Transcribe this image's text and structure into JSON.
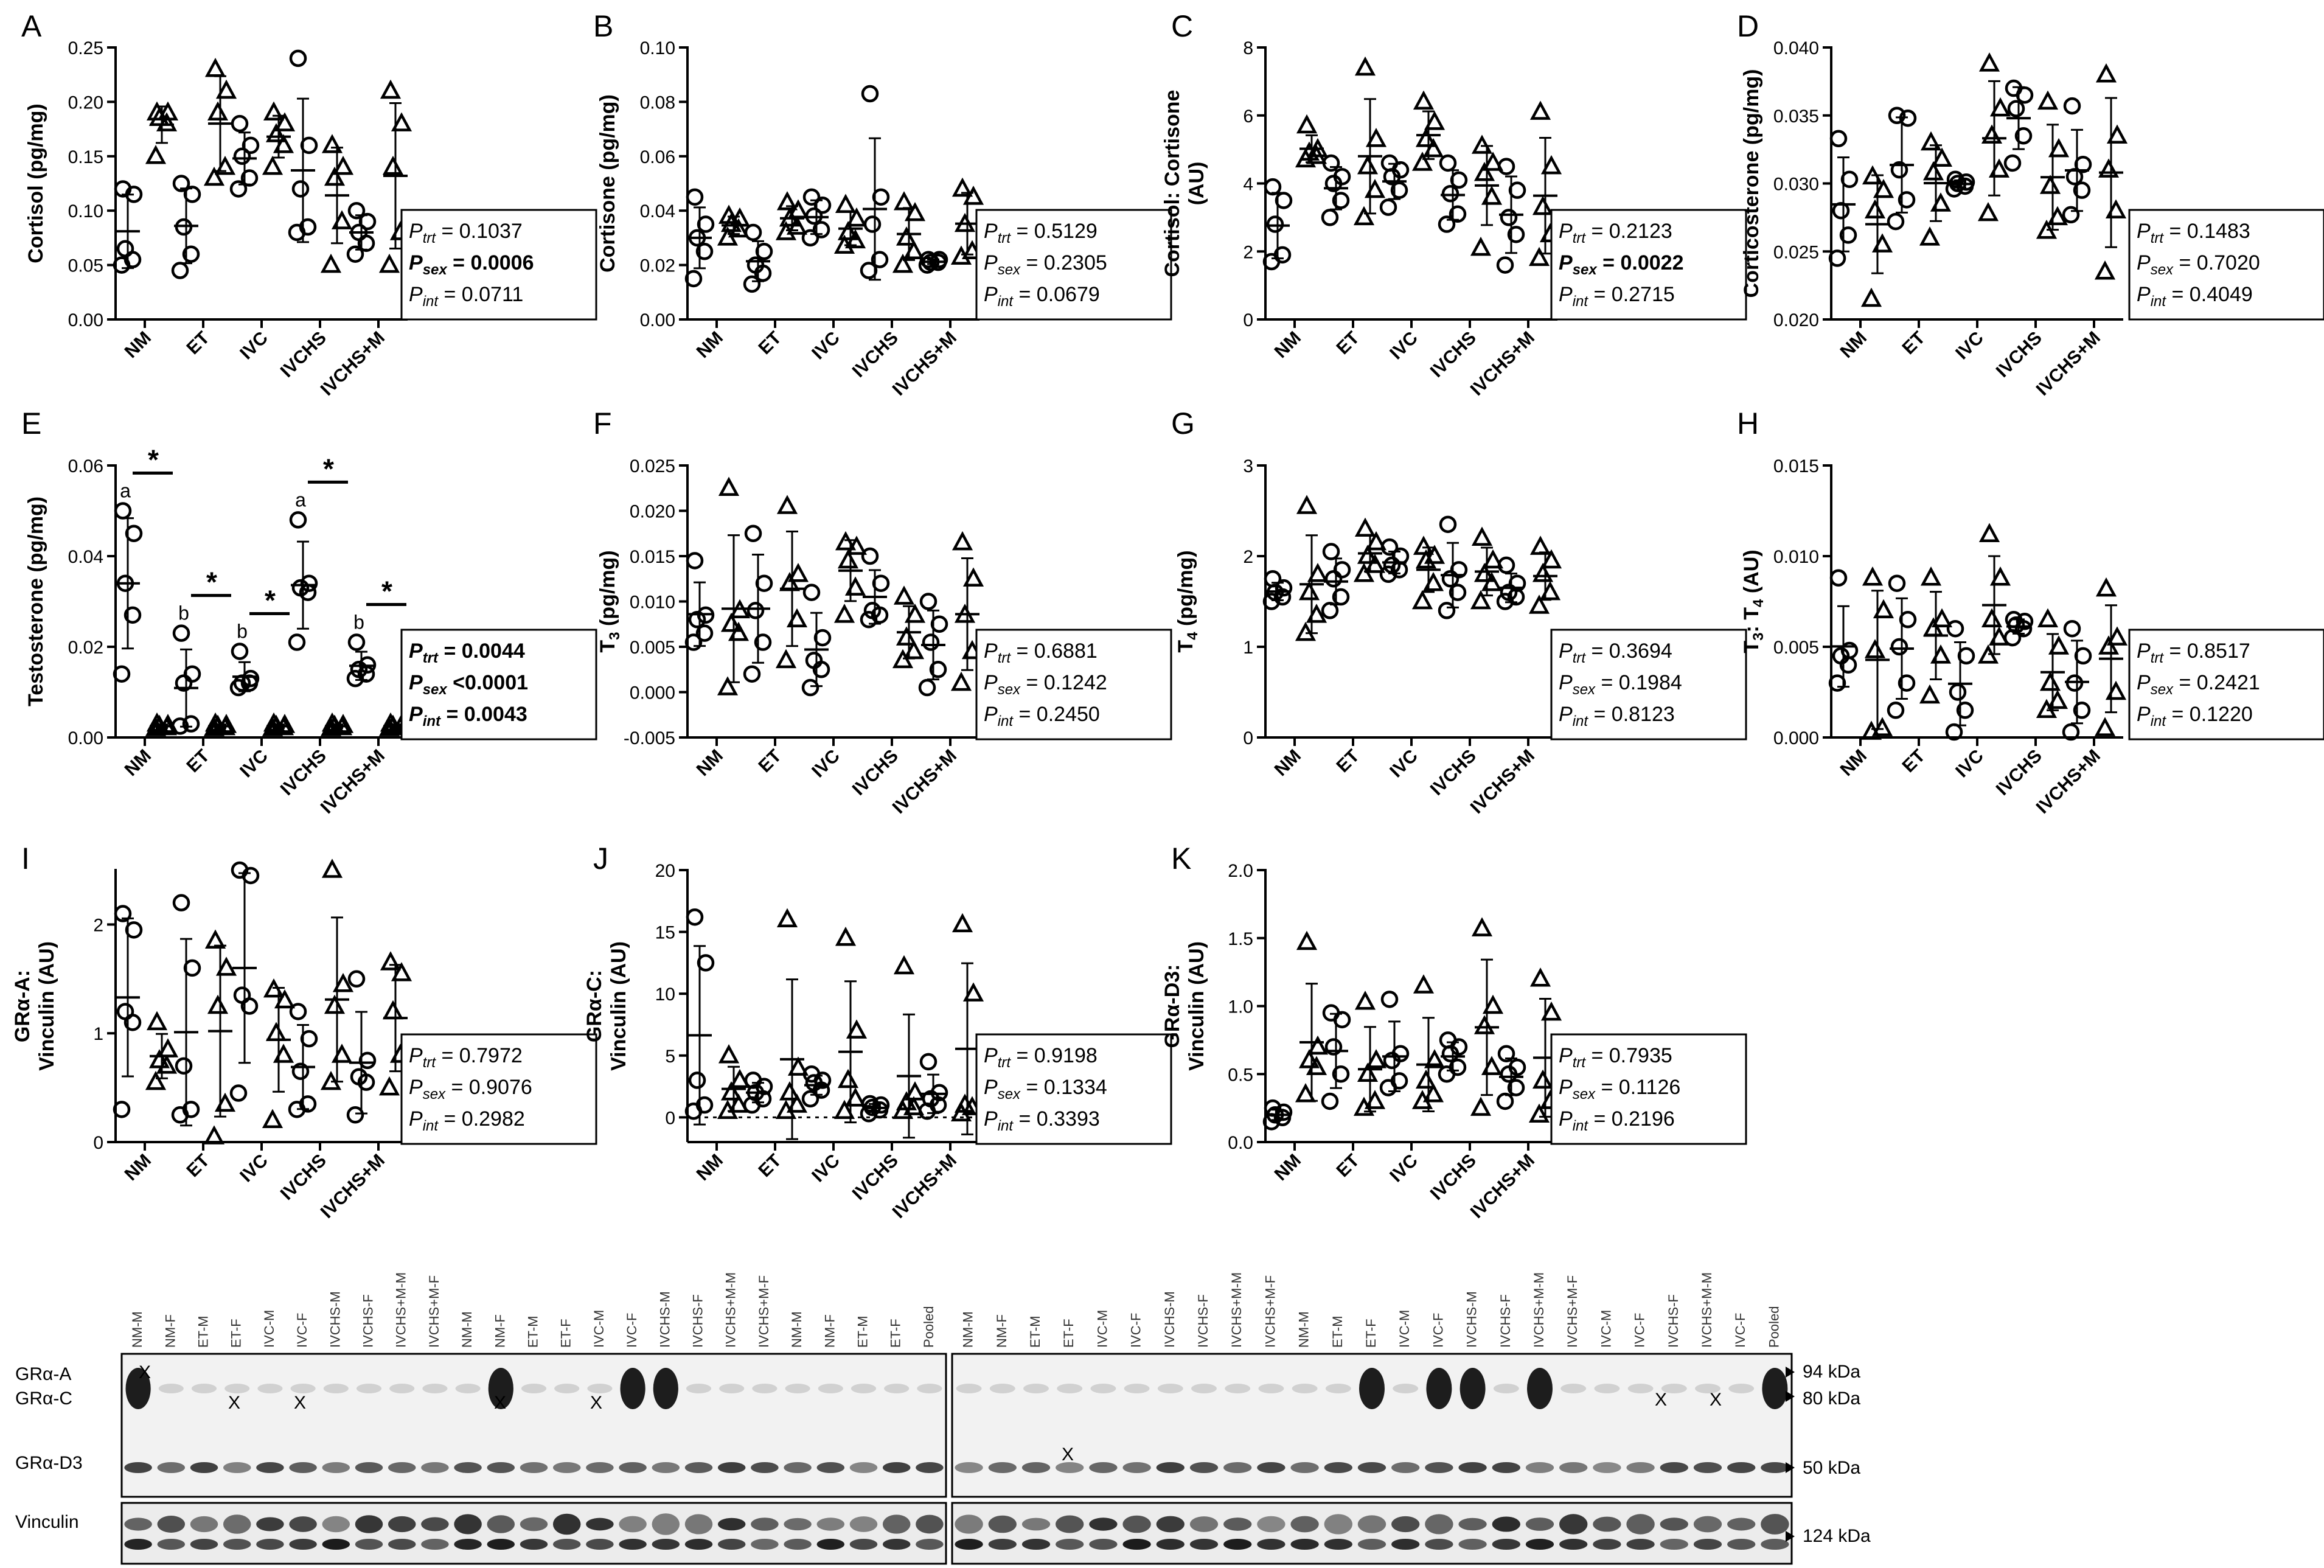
{
  "groups": [
    "NM",
    "ET",
    "IVC",
    "IVCHS",
    "IVCHS+M"
  ],
  "chart_data": [
    {
      "panel": "A",
      "type": "scatter",
      "ylabel": [
        "Cortisol (pg/mg)"
      ],
      "ylim": [
        0,
        0.25
      ],
      "ticks": [
        "0.00",
        "0.05",
        "0.10",
        "0.15",
        "0.20",
        "0.25"
      ],
      "tickvals": [
        0,
        0.05,
        0.1,
        0.15,
        0.2,
        0.25
      ],
      "dotted_zero": false,
      "female": [
        [
          0.05,
          0.055,
          0.065,
          0.115,
          0.12
        ],
        [
          0.045,
          0.06,
          0.085,
          0.115,
          0.125
        ],
        [
          0.12,
          0.13,
          0.15,
          0.16,
          0.18
        ],
        [
          0.08,
          0.085,
          0.12,
          0.16,
          0.24
        ],
        [
          0.06,
          0.07,
          0.08,
          0.09,
          0.1
        ]
      ],
      "male": [
        [
          0.15,
          0.18,
          0.185,
          0.19,
          0.19
        ],
        [
          0.13,
          0.14,
          0.19,
          0.21,
          0.23
        ],
        [
          0.14,
          0.16,
          0.17,
          0.18,
          0.19
        ],
        [
          0.05,
          0.09,
          0.13,
          0.14,
          0.16
        ],
        [
          0.05,
          0.08,
          0.14,
          0.18,
          0.21
        ]
      ],
      "stats": {
        "p_trt": "0.1037",
        "p_sex": "0.0006",
        "p_int": "0.0711"
      },
      "bold": [
        "sex"
      ],
      "letters_f": [],
      "letters_m": [],
      "stars": []
    },
    {
      "panel": "B",
      "type": "scatter",
      "ylabel": [
        "Cortisone (pg/mg)"
      ],
      "ylim": [
        0,
        0.1
      ],
      "ticks": [
        "0.00",
        "0.02",
        "0.04",
        "0.06",
        "0.08",
        "0.10"
      ],
      "tickvals": [
        0,
        0.02,
        0.04,
        0.06,
        0.08,
        0.1
      ],
      "dotted_zero": false,
      "female": [
        [
          0.015,
          0.025,
          0.03,
          0.035,
          0.045
        ],
        [
          0.013,
          0.017,
          0.02,
          0.025,
          0.032
        ],
        [
          0.03,
          0.033,
          0.038,
          0.042,
          0.045
        ],
        [
          0.018,
          0.022,
          0.035,
          0.045,
          0.083
        ],
        [
          0.02,
          0.021,
          0.021,
          0.022,
          0.022
        ]
      ],
      "male": [
        [
          0.03,
          0.033,
          0.035,
          0.037,
          0.038
        ],
        [
          0.032,
          0.034,
          0.037,
          0.04,
          0.043
        ],
        [
          0.027,
          0.029,
          0.032,
          0.037,
          0.042
        ],
        [
          0.02,
          0.025,
          0.03,
          0.039,
          0.043
        ],
        [
          0.023,
          0.025,
          0.035,
          0.045,
          0.048
        ]
      ],
      "stats": {
        "p_trt": "0.5129",
        "p_sex": "0.2305",
        "p_int": "0.0679"
      },
      "bold": [],
      "letters_f": [],
      "letters_m": [],
      "stars": []
    },
    {
      "panel": "C",
      "type": "scatter",
      "ylabel": [
        "Cortisol: Cortisone",
        "(AU)"
      ],
      "ylim": [
        0,
        8
      ],
      "ticks": [
        "0",
        "2",
        "4",
        "6",
        "8"
      ],
      "tickvals": [
        0,
        2,
        4,
        6,
        8
      ],
      "dotted_zero": false,
      "female": [
        [
          1.7,
          1.9,
          2.8,
          3.5,
          3.9
        ],
        [
          3.0,
          3.5,
          4.0,
          4.2,
          4.6
        ],
        [
          3.3,
          3.8,
          4.2,
          4.4,
          4.6
        ],
        [
          2.8,
          3.1,
          3.7,
          4.1,
          4.6
        ],
        [
          1.6,
          2.5,
          3.0,
          3.8,
          4.5
        ]
      ],
      "male": [
        [
          4.7,
          4.8,
          4.9,
          5.0,
          5.7
        ],
        [
          3.0,
          3.8,
          4.5,
          5.3,
          7.4
        ],
        [
          4.6,
          5.0,
          5.3,
          5.8,
          6.4
        ],
        [
          2.1,
          3.6,
          4.3,
          4.6,
          5.1
        ],
        [
          1.8,
          2.5,
          3.3,
          4.5,
          6.1
        ]
      ],
      "stats": {
        "p_trt": "0.2123",
        "p_sex": "0.0022",
        "p_int": "0.2715"
      },
      "bold": [
        "sex"
      ],
      "letters_f": [],
      "letters_m": [],
      "stars": []
    },
    {
      "panel": "D",
      "type": "scatter",
      "ylabel": [
        "Corticosterone (pg/mg)"
      ],
      "ylim": [
        0.02,
        0.04
      ],
      "ticks": [
        "0.020",
        "0.025",
        "0.030",
        "0.035",
        "0.040"
      ],
      "tickvals": [
        0.02,
        0.025,
        0.03,
        0.035,
        0.04
      ],
      "dotted_zero": false,
      "female": [
        [
          0.0245,
          0.0262,
          0.028,
          0.0303,
          0.0333
        ],
        [
          0.0272,
          0.0288,
          0.031,
          0.0348,
          0.035
        ],
        [
          0.0296,
          0.0298,
          0.03,
          0.0301,
          0.0303
        ],
        [
          0.0315,
          0.0335,
          0.0355,
          0.0365,
          0.037
        ],
        [
          0.0277,
          0.0295,
          0.0305,
          0.0314,
          0.0357
        ]
      ],
      "male": [
        [
          0.0215,
          0.0255,
          0.028,
          0.0295,
          0.0305
        ],
        [
          0.026,
          0.0285,
          0.0308,
          0.0318,
          0.033
        ],
        [
          0.0278,
          0.031,
          0.0335,
          0.0355,
          0.0388
        ],
        [
          0.0265,
          0.0275,
          0.0298,
          0.0325,
          0.036
        ],
        [
          0.0235,
          0.028,
          0.031,
          0.0335,
          0.038
        ]
      ],
      "stats": {
        "p_trt": "0.1483",
        "p_sex": "0.7020",
        "p_int": "0.4049"
      },
      "bold": [],
      "letters_f": [],
      "letters_m": [],
      "stars": []
    },
    {
      "panel": "E",
      "type": "scatter",
      "ylabel": [
        "Testosterone (pg/mg)"
      ],
      "ylim": [
        0,
        0.06
      ],
      "ticks": [
        "0.00",
        "0.02",
        "0.04",
        "0.06"
      ],
      "tickvals": [
        0,
        0.02,
        0.04,
        0.06
      ],
      "dotted_zero": false,
      "female": [
        [
          0.014,
          0.027,
          0.034,
          0.045,
          0.05
        ],
        [
          0.0025,
          0.003,
          0.012,
          0.014,
          0.023
        ],
        [
          0.011,
          0.012,
          0.012,
          0.013,
          0.019
        ],
        [
          0.021,
          0.032,
          0.033,
          0.034,
          0.048
        ],
        [
          0.013,
          0.014,
          0.015,
          0.016,
          0.021
        ]
      ],
      "male": [
        [
          0.002,
          0.0022,
          0.0025,
          0.0027,
          0.003
        ],
        [
          0.002,
          0.0022,
          0.0025,
          0.0027,
          0.003
        ],
        [
          0.002,
          0.0022,
          0.0025,
          0.0027,
          0.003
        ],
        [
          0.002,
          0.0022,
          0.0025,
          0.0027,
          0.003
        ],
        [
          0.002,
          0.0022,
          0.0025,
          0.0027,
          0.003
        ]
      ],
      "stats": {
        "p_trt": "0.0044",
        "p_sex": "<0.0001",
        "p_int": "0.0043"
      },
      "bold": [
        "trt",
        "sex",
        "int"
      ],
      "letters_f": [
        "a",
        "b",
        "b",
        "a",
        "b"
      ],
      "letters_m": [],
      "stars": [
        "*",
        "*",
        "*",
        "*",
        "*"
      ]
    },
    {
      "panel": "F",
      "type": "scatter",
      "ylabel": [
        "T3 (pg/mg)"
      ],
      "ylim": [
        -0.005,
        0.025
      ],
      "ticks": [
        "-0.005",
        "0.000",
        "0.005",
        "0.010",
        "0.015",
        "0.020",
        "0.025"
      ],
      "tickvals": [
        -0.005,
        0,
        0.005,
        0.01,
        0.015,
        0.02,
        0.025
      ],
      "dotted_zero": false,
      "female": [
        [
          0.0055,
          0.0065,
          0.008,
          0.0085,
          0.0145
        ],
        [
          0.002,
          0.0055,
          0.009,
          0.012,
          0.0175
        ],
        [
          0.0005,
          0.0025,
          0.0035,
          0.006,
          0.011
        ],
        [
          0.008,
          0.0085,
          0.009,
          0.012,
          0.015
        ],
        [
          0.0005,
          0.0025,
          0.0055,
          0.0075,
          0.01
        ]
      ],
      "male": [
        [
          0.0005,
          0.0065,
          0.0075,
          0.009,
          0.0225
        ],
        [
          0.0035,
          0.008,
          0.012,
          0.013,
          0.0205
        ],
        [
          0.0085,
          0.0115,
          0.0145,
          0.016,
          0.0165
        ],
        [
          0.0035,
          0.0045,
          0.006,
          0.0085,
          0.0105
        ],
        [
          0.001,
          0.0045,
          0.0085,
          0.0125,
          0.0165
        ]
      ],
      "stats": {
        "p_trt": "0.6881",
        "p_sex": "0.1242",
        "p_int": "0.2450"
      },
      "bold": [],
      "letters_f": [],
      "letters_m": [],
      "stars": []
    },
    {
      "panel": "G",
      "type": "scatter",
      "ylabel": [
        "T4 (pg/mg)"
      ],
      "ylim": [
        0,
        3
      ],
      "ticks": [
        "0",
        "1",
        "2",
        "3"
      ],
      "tickvals": [
        0,
        1,
        2,
        3
      ],
      "dotted_zero": false,
      "female": [
        [
          1.5,
          1.55,
          1.6,
          1.65,
          1.75
        ],
        [
          1.4,
          1.55,
          1.75,
          1.85,
          2.05
        ],
        [
          1.8,
          1.85,
          1.9,
          2.0,
          2.1
        ],
        [
          1.4,
          1.6,
          1.75,
          1.85,
          2.35
        ],
        [
          1.5,
          1.55,
          1.6,
          1.7,
          1.9
        ]
      ],
      "male": [
        [
          1.15,
          1.35,
          1.6,
          1.8,
          2.55
        ],
        [
          1.8,
          1.9,
          2.0,
          2.15,
          2.3
        ],
        [
          1.5,
          1.7,
          1.95,
          2.0,
          2.1
        ],
        [
          1.5,
          1.7,
          1.8,
          1.95,
          2.2
        ],
        [
          1.45,
          1.6,
          1.8,
          1.95,
          2.1
        ]
      ],
      "stats": {
        "p_trt": "0.3694",
        "p_sex": "0.1984",
        "p_int": "0.8123"
      },
      "bold": [],
      "letters_f": [],
      "letters_m": [],
      "stars": []
    },
    {
      "panel": "H",
      "type": "scatter",
      "ylabel": [
        "T3: T4 (AU)"
      ],
      "ylim": [
        0,
        0.015
      ],
      "ticks": [
        "0.000",
        "0.005",
        "0.010",
        "0.015"
      ],
      "tickvals": [
        0,
        0.005,
        0.01,
        0.015
      ],
      "dotted_zero": false,
      "female": [
        [
          0.003,
          0.004,
          0.0045,
          0.0048,
          0.0088
        ],
        [
          0.0015,
          0.003,
          0.005,
          0.0065,
          0.0085
        ],
        [
          0.0003,
          0.0015,
          0.0025,
          0.0045,
          0.006
        ],
        [
          0.0055,
          0.006,
          0.0062,
          0.0064,
          0.0065
        ],
        [
          0.0003,
          0.0015,
          0.003,
          0.0045,
          0.006
        ]
      ],
      "male": [
        [
          0.0003,
          0.0005,
          0.0048,
          0.007,
          0.0088
        ],
        [
          0.0023,
          0.0045,
          0.006,
          0.0065,
          0.0088
        ],
        [
          0.0045,
          0.0055,
          0.0065,
          0.0088,
          0.0112
        ],
        [
          0.0015,
          0.002,
          0.003,
          0.005,
          0.0065
        ],
        [
          0.0005,
          0.0025,
          0.005,
          0.0055,
          0.0082
        ]
      ],
      "stats": {
        "p_trt": "0.8517",
        "p_sex": "0.2421",
        "p_int": "0.1220"
      },
      "bold": [],
      "letters_f": [],
      "letters_m": [],
      "stars": []
    },
    {
      "panel": "I",
      "type": "scatter",
      "ylabel": [
        "GRα-A:",
        "Vinculin (AU)"
      ],
      "ylim": [
        0,
        2.5
      ],
      "ticks": [
        "0",
        "1",
        "2"
      ],
      "tickvals": [
        0,
        1,
        2
      ],
      "dotted_zero": false,
      "female": [
        [
          0.3,
          1.1,
          1.2,
          1.95,
          2.1
        ],
        [
          0.25,
          0.3,
          0.7,
          1.6,
          2.2
        ],
        [
          0.45,
          1.25,
          1.35,
          2.45,
          2.5
        ],
        [
          0.3,
          0.35,
          0.65,
          0.95,
          1.2
        ],
        [
          0.25,
          0.55,
          0.6,
          0.75,
          1.5
        ]
      ],
      "male": [
        [
          0.55,
          0.7,
          0.75,
          0.85,
          1.1
        ],
        [
          0.05,
          0.35,
          1.25,
          1.6,
          1.85
        ],
        [
          0.2,
          0.8,
          1.0,
          1.3,
          1.4
        ],
        [
          0.55,
          0.8,
          1.25,
          1.45,
          2.5
        ],
        [
          0.5,
          0.8,
          1.2,
          1.55,
          1.65
        ]
      ],
      "stats": {
        "p_trt": "0.7972",
        "p_sex": "0.9076",
        "p_int": "0.2982"
      },
      "bold": [],
      "letters_f": [],
      "letters_m": [],
      "stars": []
    },
    {
      "panel": "J",
      "type": "scatter",
      "ylabel": [
        "GRα-C:",
        "Vinculin (AU)"
      ],
      "ylim": [
        -2,
        20
      ],
      "ticks": [
        "0",
        "5",
        "10",
        "15",
        "20"
      ],
      "tickvals": [
        0,
        5,
        10,
        15,
        20
      ],
      "dotted_zero": true,
      "female": [
        [
          0.5,
          1,
          3,
          12.5,
          16.2
        ],
        [
          1,
          1.5,
          2,
          2.5,
          3
        ],
        [
          1.5,
          2.2,
          2.8,
          3,
          3.5
        ],
        [
          0.3,
          0.6,
          0.8,
          1,
          1.1
        ],
        [
          0.5,
          1,
          1.5,
          2,
          4.5
        ]
      ],
      "male": [
        [
          0.5,
          1,
          2,
          3,
          5
        ],
        [
          0.5,
          1,
          2,
          4,
          16
        ],
        [
          0.5,
          1.5,
          3,
          7,
          14.5
        ],
        [
          0.5,
          0.8,
          1.2,
          2,
          12.2
        ],
        [
          0.3,
          0.8,
          1,
          10,
          15.6
        ]
      ],
      "stats": {
        "p_trt": "0.9198",
        "p_sex": "0.1334",
        "p_int": "0.3393"
      },
      "bold": [],
      "letters_f": [],
      "letters_m": [],
      "stars": []
    },
    {
      "panel": "K",
      "type": "scatter",
      "ylabel": [
        "GRα-D3:",
        "Vinculin (AU)"
      ],
      "ylim": [
        0,
        2
      ],
      "ticks": [
        "0.0",
        "0.5",
        "1.0",
        "1.5",
        "2.0"
      ],
      "tickvals": [
        0,
        0.5,
        1,
        1.5,
        2
      ],
      "dotted_zero": false,
      "female": [
        [
          0.15,
          0.18,
          0.2,
          0.22,
          0.25
        ],
        [
          0.3,
          0.5,
          0.7,
          0.9,
          0.95
        ],
        [
          0.4,
          0.45,
          0.6,
          0.65,
          1.05
        ],
        [
          0.5,
          0.55,
          0.65,
          0.7,
          0.75
        ],
        [
          0.3,
          0.4,
          0.5,
          0.55,
          0.65
        ]
      ],
      "male": [
        [
          0.35,
          0.55,
          0.6,
          0.7,
          1.47
        ],
        [
          0.25,
          0.3,
          0.5,
          0.6,
          1.03
        ],
        [
          0.3,
          0.35,
          0.45,
          0.6,
          1.15
        ],
        [
          0.25,
          0.55,
          0.85,
          1.0,
          1.57
        ],
        [
          0.2,
          0.3,
          0.45,
          0.95,
          1.2
        ]
      ],
      "stats": {
        "p_trt": "0.7935",
        "p_sex": "0.1126",
        "p_int": "0.2196"
      },
      "bold": [],
      "letters_f": [],
      "letters_m": [],
      "stars": []
    }
  ],
  "blot": {
    "lanes_left": [
      "NM-M",
      "NM-F",
      "ET-M",
      "ET-F",
      "IVC-M",
      "IVC-F",
      "IVCHS-M",
      "IVCHS-F",
      "IVCHS+M-M",
      "IVCHS+M-F",
      "NM-M",
      "NM-F",
      "ET-M",
      "ET-F",
      "IVC-M",
      "IVC-F",
      "IVCHS-M",
      "IVCHS-F",
      "IVCHS+M-M",
      "IVCHS+M-F",
      "NM-M",
      "NM-F",
      "ET-M",
      "ET-F",
      "Pooled"
    ],
    "lanes_right": [
      "NM-M",
      "NM-F",
      "ET-M",
      "ET-F",
      "IVC-M",
      "IVC-F",
      "IVCHS-M",
      "IVCHS-F",
      "IVCHS+M-M",
      "IVCHS+M-F",
      "NM-M",
      "ET-M",
      "ET-F",
      "IVC-M",
      "IVC-F",
      "IVCHS-M",
      "IVCHS-F",
      "IVCHS+M-M",
      "IVCHS+M-F",
      "IVC-M",
      "IVC-F",
      "IVCHS-F",
      "IVCHS+M-M",
      "IVC-F",
      "Pooled"
    ],
    "row_labels": [
      "GRα-A",
      "GRα-C",
      "GRα-D3",
      "Vinculin"
    ],
    "kda": [
      "94 kDa",
      "80 kDa",
      "50 kDa",
      "124 kDa"
    ],
    "mark": "X"
  }
}
